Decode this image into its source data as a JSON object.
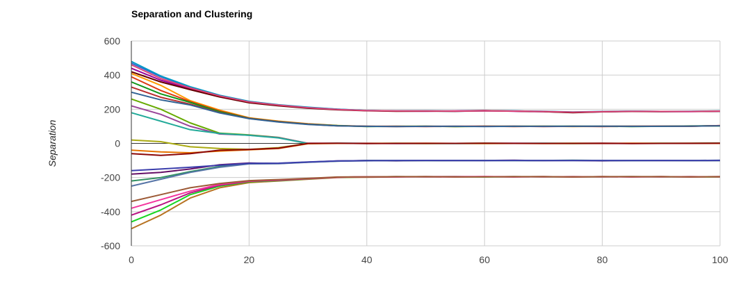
{
  "chart_data": {
    "type": "line",
    "title": "Separation and Clustering",
    "xlabel": "",
    "ylabel": "Separation",
    "xlim": [
      0,
      100
    ],
    "ylim": [
      -600,
      600
    ],
    "x_ticks": [
      0,
      20,
      40,
      60,
      80,
      100
    ],
    "y_ticks": [
      600,
      400,
      200,
      0,
      -200,
      -400,
      -600
    ],
    "x_tick_labels": [
      "0",
      "20",
      "40",
      "60",
      "80",
      "100"
    ],
    "y_tick_labels": [
      "600",
      "400",
      "200",
      "0",
      "-200",
      "-400",
      "-600"
    ],
    "grid": true,
    "legend": "none",
    "x": [
      0,
      5,
      10,
      15,
      20,
      25,
      30,
      35,
      40,
      45,
      50,
      55,
      60,
      65,
      70,
      75,
      80,
      85,
      90,
      95,
      100
    ],
    "series": [
      {
        "color": "#3366cc",
        "values": [
          470,
          390,
          330,
          280,
          245,
          225,
          210,
          200,
          192,
          190,
          190,
          188,
          190,
          190,
          187,
          182,
          185,
          188,
          186,
          187,
          188
        ]
      },
      {
        "color": "#990099",
        "values": [
          440,
          370,
          320,
          275,
          240,
          222,
          208,
          198,
          192,
          189,
          188,
          190,
          192,
          188,
          186,
          181,
          186,
          188,
          187,
          186,
          189
        ]
      },
      {
        "color": "#0099c6",
        "values": [
          480,
          395,
          332,
          282,
          246,
          226,
          212,
          200,
          193,
          190,
          191,
          189,
          191,
          190,
          188,
          184,
          187,
          189,
          187,
          188,
          190
        ]
      },
      {
        "color": "#660000",
        "values": [
          420,
          360,
          315,
          272,
          238,
          220,
          206,
          197,
          191,
          188,
          189,
          188,
          191,
          189,
          186,
          180,
          185,
          187,
          186,
          187,
          188
        ]
      },
      {
        "color": "#dd4477",
        "values": [
          460,
          380,
          325,
          278,
          243,
          224,
          209,
          199,
          192,
          190,
          190,
          189,
          190,
          189,
          187,
          183,
          186,
          188,
          187,
          187,
          189
        ]
      },
      {
        "color": "#ff9900",
        "values": [
          410,
          340,
          250,
          195,
          150,
          130,
          115,
          105,
          100,
          100,
          101,
          99,
          100,
          100,
          101,
          99,
          100,
          101,
          100,
          101,
          103
        ]
      },
      {
        "color": "#dc3912",
        "values": [
          390,
          310,
          245,
          190,
          148,
          128,
          114,
          104,
          100,
          99,
          100,
          100,
          101,
          99,
          100,
          100,
          99,
          100,
          101,
          100,
          104
        ]
      },
      {
        "color": "#109618",
        "values": [
          360,
          290,
          240,
          185,
          147,
          127,
          113,
          104,
          99,
          100,
          100,
          99,
          100,
          100,
          100,
          101,
          100,
          99,
          100,
          102,
          103
        ]
      },
      {
        "color": "#b82e2e",
        "values": [
          330,
          270,
          230,
          180,
          146,
          126,
          112,
          103,
          100,
          100,
          99,
          100,
          100,
          101,
          99,
          100,
          100,
          100,
          101,
          101,
          104
        ]
      },
      {
        "color": "#316395",
        "values": [
          300,
          255,
          225,
          178,
          145,
          125,
          111,
          103,
          100,
          99,
          100,
          100,
          99,
          100,
          100,
          100,
          101,
          100,
          100,
          101,
          103
        ]
      },
      {
        "color": "#66aa00",
        "values": [
          260,
          200,
          120,
          60,
          50,
          35,
          0,
          0,
          0,
          0,
          -1,
          0,
          1,
          0,
          0,
          -1,
          0,
          0,
          1,
          0,
          2
        ]
      },
      {
        "color": "#994499",
        "values": [
          220,
          170,
          100,
          55,
          48,
          34,
          1,
          0,
          1,
          -1,
          0,
          0,
          0,
          1,
          0,
          0,
          -1,
          0,
          0,
          1,
          1
        ]
      },
      {
        "color": "#22aa99",
        "values": [
          180,
          130,
          80,
          58,
          47,
          32,
          -1,
          1,
          0,
          0,
          0,
          -1,
          0,
          0,
          1,
          0,
          0,
          0,
          0,
          0,
          2
        ]
      },
      {
        "color": "#aaaa11",
        "values": [
          20,
          10,
          -20,
          -30,
          -35,
          -25,
          0,
          0,
          0,
          1,
          0,
          0,
          -1,
          0,
          0,
          1,
          0,
          0,
          0,
          1,
          1
        ]
      },
      {
        "color": "#e67300",
        "values": [
          -40,
          -50,
          -55,
          -45,
          -38,
          -30,
          -2,
          0,
          0,
          0,
          1,
          0,
          0,
          0,
          -1,
          0,
          0,
          1,
          0,
          0,
          0
        ]
      },
      {
        "color": "#8b0707",
        "values": [
          -60,
          -70,
          -60,
          -40,
          -36,
          -28,
          0,
          1,
          -1,
          0,
          0,
          0,
          1,
          0,
          0,
          0,
          1,
          -1,
          0,
          0,
          1
        ]
      },
      {
        "color": "#651067",
        "values": [
          -180,
          -170,
          -150,
          -125,
          -115,
          -118,
          -110,
          -103,
          -101,
          -102,
          -100,
          -101,
          -100,
          -99,
          -101,
          -100,
          -102,
          -100,
          -101,
          -100,
          -100
        ]
      },
      {
        "color": "#329262",
        "values": [
          -220,
          -200,
          -165,
          -135,
          -118,
          -117,
          -110,
          -104,
          -100,
          -101,
          -101,
          -100,
          -100,
          -101,
          -100,
          -99,
          -100,
          -101,
          -100,
          -101,
          -101
        ]
      },
      {
        "color": "#5574a6",
        "values": [
          -250,
          -210,
          -170,
          -140,
          -120,
          -119,
          -111,
          -104,
          -102,
          -100,
          -100,
          -101,
          -101,
          -100,
          -100,
          -101,
          -100,
          -100,
          -100,
          -100,
          -99
        ]
      },
      {
        "color": "#3b3eac",
        "values": [
          -160,
          -150,
          -140,
          -128,
          -117,
          -116,
          -109,
          -103,
          -101,
          -101,
          -100,
          -100,
          -101,
          -100,
          -101,
          -100,
          -101,
          -101,
          -100,
          -101,
          -100
        ]
      },
      {
        "color": "#b77322",
        "values": [
          -500,
          -420,
          -320,
          -260,
          -230,
          -220,
          -210,
          -200,
          -198,
          -196,
          -195,
          -196,
          -195,
          -196,
          -195,
          -197,
          -195,
          -196,
          -195,
          -196,
          -196
        ]
      },
      {
        "color": "#16d620",
        "values": [
          -460,
          -390,
          -300,
          -250,
          -225,
          -218,
          -208,
          -199,
          -197,
          -195,
          -196,
          -195,
          -196,
          -195,
          -196,
          -195,
          -196,
          -195,
          -196,
          -195,
          -197
        ]
      },
      {
        "color": "#b91383",
        "values": [
          -420,
          -360,
          -290,
          -245,
          -222,
          -216,
          -207,
          -198,
          -196,
          -196,
          -195,
          -195,
          -195,
          -196,
          -195,
          -196,
          -195,
          -196,
          -195,
          -196,
          -195
        ]
      },
      {
        "color": "#f4359e",
        "values": [
          -380,
          -330,
          -280,
          -240,
          -220,
          -214,
          -206,
          -198,
          -196,
          -195,
          -196,
          -196,
          -195,
          -195,
          -196,
          -195,
          -196,
          -195,
          -196,
          -195,
          -196
        ]
      },
      {
        "color": "#9c5935",
        "values": [
          -340,
          -300,
          -260,
          -235,
          -218,
          -212,
          -205,
          -197,
          -196,
          -195,
          -195,
          -196,
          -196,
          -195,
          -195,
          -196,
          -195,
          -195,
          -195,
          -196,
          -195
        ]
      }
    ]
  }
}
